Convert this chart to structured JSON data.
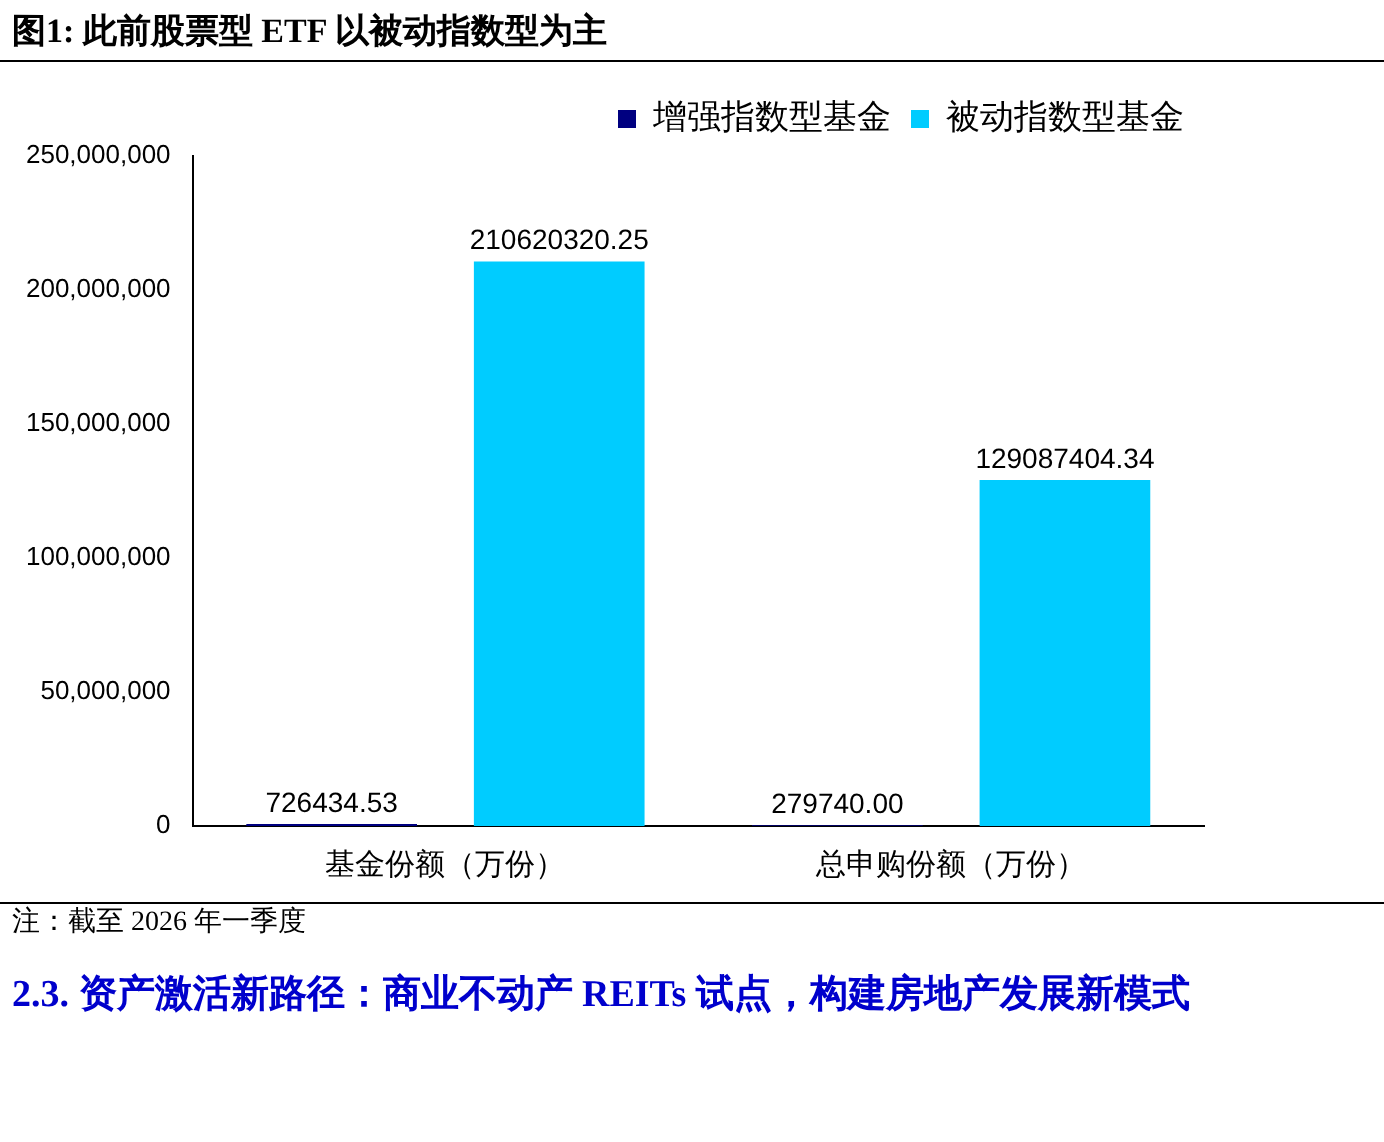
{
  "chart_data": {
    "type": "bar",
    "title": "图1:  此前股票型 ETF 以被动指数型为主",
    "categories": [
      "基金份额（万份）",
      "总申购份额（万份）"
    ],
    "series": [
      {
        "name": "增强指数型基金",
        "color": "#000080",
        "values": [
          726434.53,
          279740.0
        ],
        "value_labels": [
          "726434.53",
          "279740.00"
        ]
      },
      {
        "name": "被动指数型基金",
        "color": "#00ccff",
        "values": [
          210620320.25,
          129087404.34
        ],
        "value_labels": [
          "210620320.25",
          "129087404.34"
        ]
      }
    ],
    "ylim": [
      0,
      250000000
    ],
    "yticks": [
      {
        "value": 0,
        "label": "0"
      },
      {
        "value": 50000000,
        "label": "50,000,000"
      },
      {
        "value": 100000000,
        "label": "100,000,000"
      },
      {
        "value": 150000000,
        "label": "150,000,000"
      },
      {
        "value": 200000000,
        "label": "200,000,000"
      },
      {
        "value": 250000000,
        "label": "250,000,000"
      }
    ],
    "grid": false,
    "legend": "top right",
    "annotations": [
      "注：截至 2026 年一季度",
      "2.3.  资产激活新路径：商业不动产 REITs 试点，构建房地产发展新模式"
    ]
  }
}
